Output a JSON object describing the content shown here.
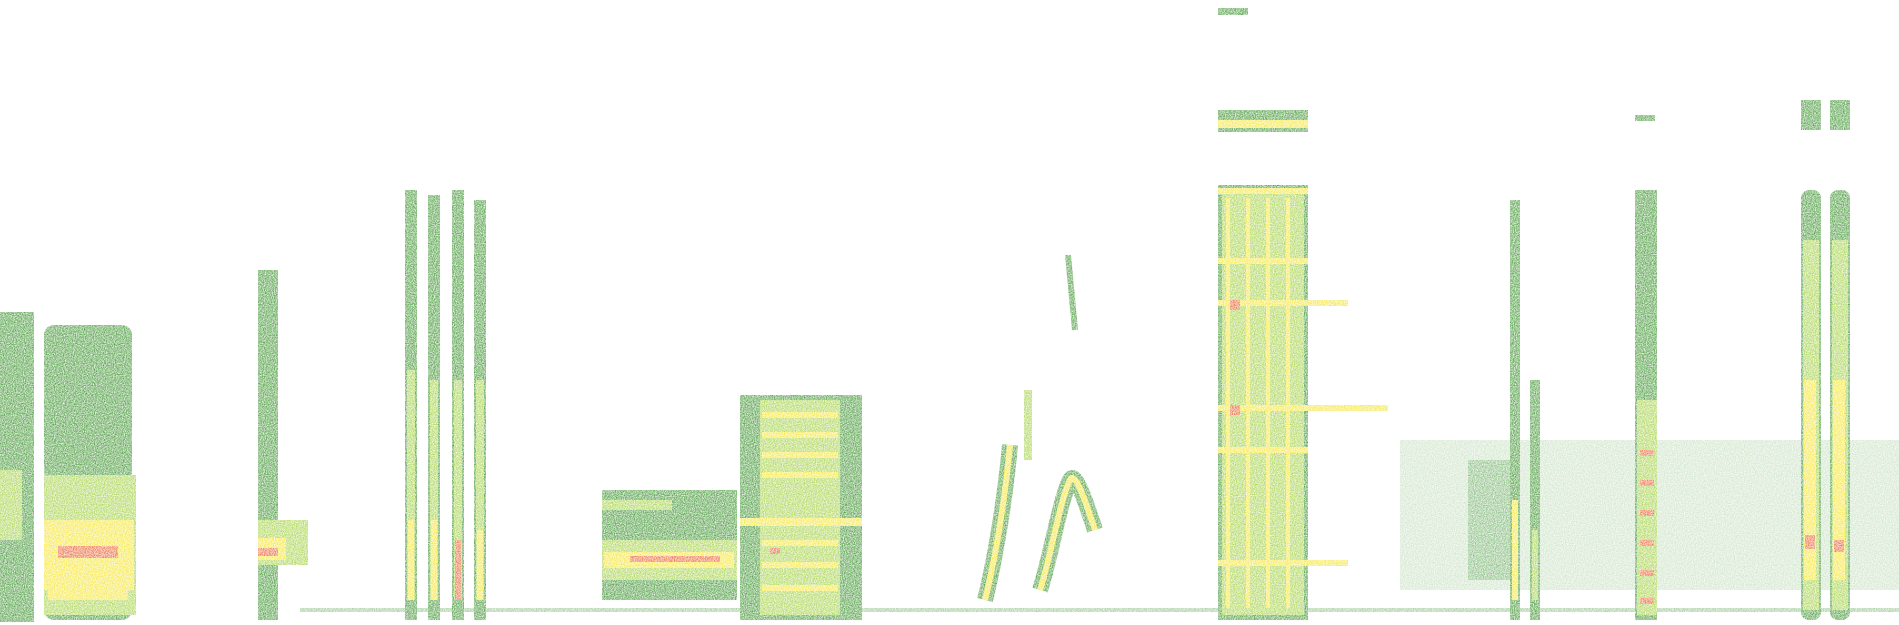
{
  "image": {
    "kind": "spectrogram",
    "background": "#ffffff",
    "palette": {
      "low": "#2e8b1f",
      "mid": "#9acd32",
      "high": "#f4e21a",
      "peak": "#e8521d"
    }
  }
}
